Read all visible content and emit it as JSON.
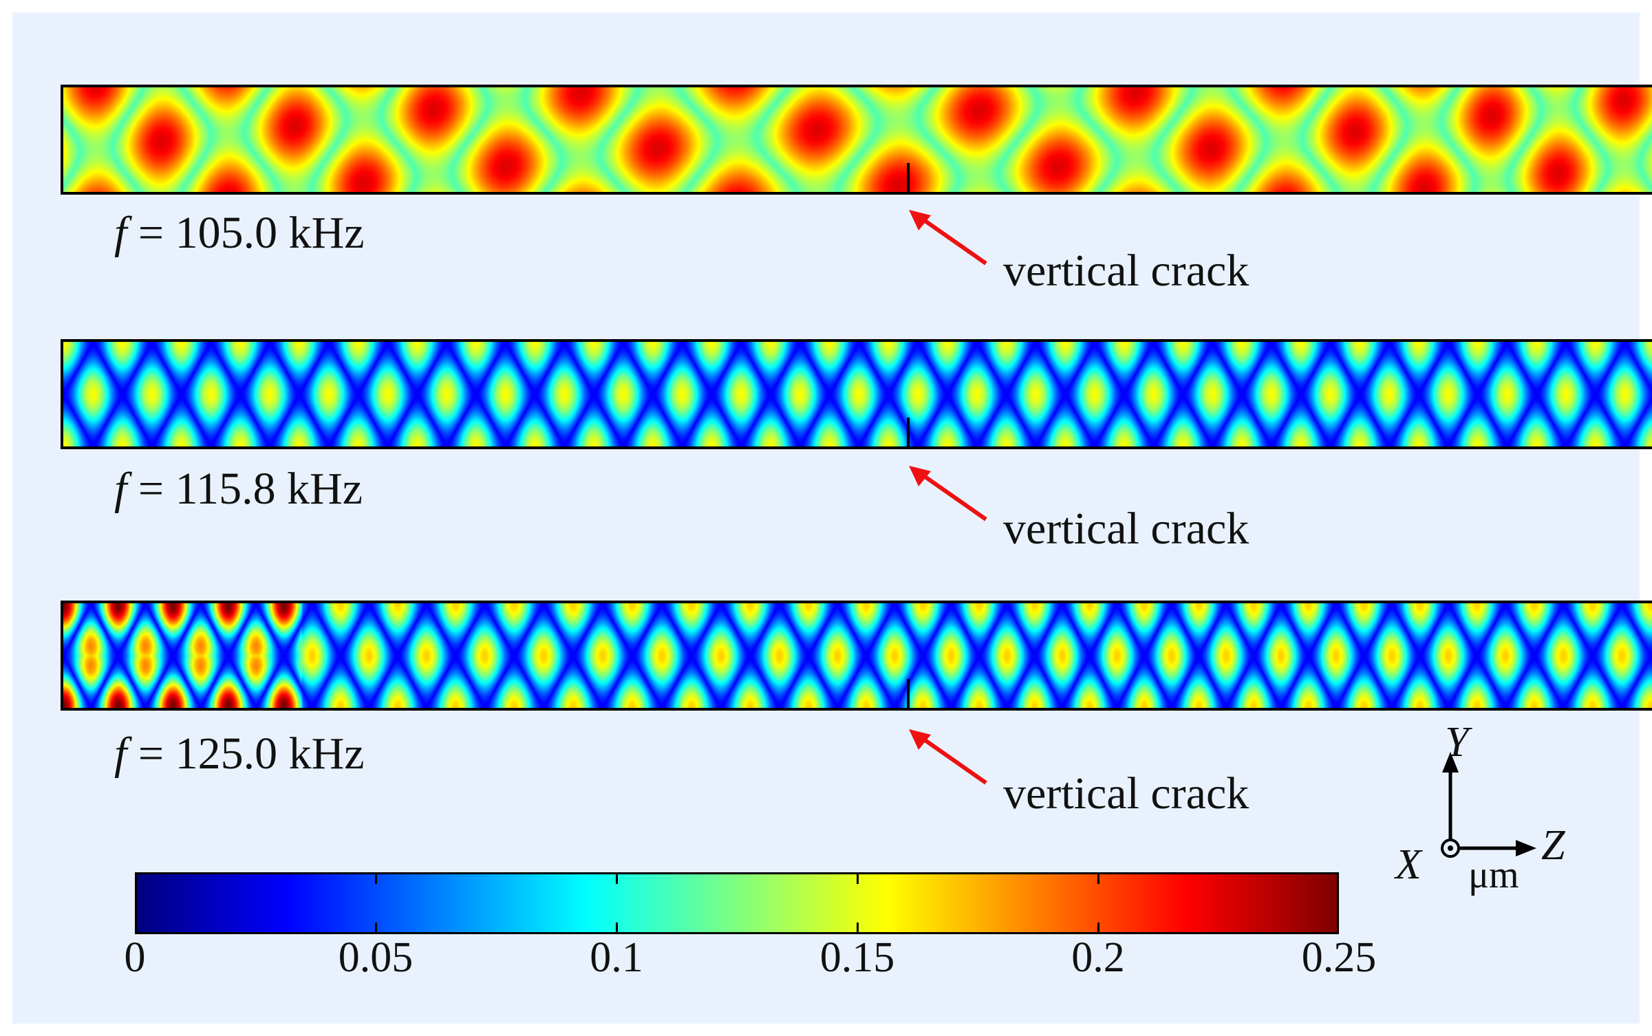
{
  "panels": [
    {
      "frequency_prefix": "f",
      "frequency_value": "= 105.0 kHz",
      "annotation": "vertical crack"
    },
    {
      "frequency_prefix": "f",
      "frequency_value": "= 115.8 kHz",
      "annotation": "vertical crack"
    },
    {
      "frequency_prefix": "f",
      "frequency_value": "= 125.0 kHz",
      "annotation": "vertical crack"
    }
  ],
  "colorbar": {
    "min": 0,
    "max": 0.25,
    "tick_labels": [
      "0",
      "0.05",
      "0.1",
      "0.15",
      "0.2",
      "0.25"
    ],
    "colormap": "jet"
  },
  "axes": {
    "y_label": "Y",
    "x_label": "X",
    "z_label": "Z",
    "unit": "μm"
  },
  "colors": {
    "background": "#e9f2fc",
    "arrow": "#ee1111",
    "border": "#000000"
  }
}
